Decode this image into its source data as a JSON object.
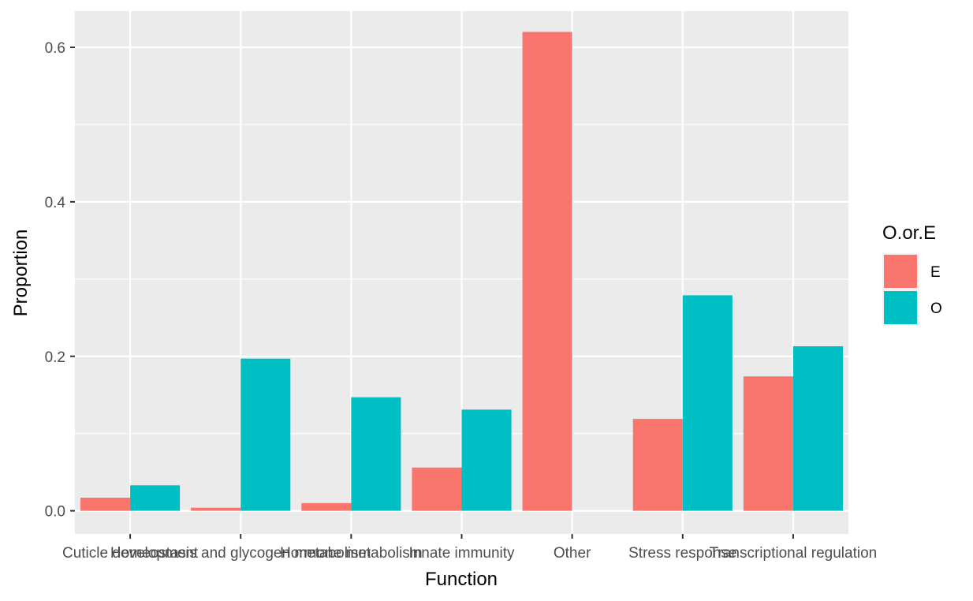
{
  "chart_data": {
    "type": "bar",
    "title": "",
    "xlabel": "Function",
    "ylabel": "Proportion",
    "categories": [
      "Cuticle development",
      "Homeostasis and glycogen metabolism",
      "Hormone metabolism",
      "Innate immunity",
      "Other",
      "Stress response",
      "Transcriptional regulation"
    ],
    "series": [
      {
        "name": "E",
        "color": "#F8766D",
        "values": [
          0.017,
          0.004,
          0.01,
          0.056,
          0.62,
          0.119,
          0.174
        ]
      },
      {
        "name": "O",
        "color": "#00BFC4",
        "values": [
          0.033,
          0.197,
          0.147,
          0.131,
          0.0,
          0.279,
          0.213
        ]
      }
    ],
    "ylim": [
      -0.03,
      0.647
    ],
    "yticks": [
      0.0,
      0.2,
      0.4,
      0.6
    ],
    "ytick_labels": [
      "0.0",
      "0.2",
      "0.4",
      "0.6"
    ],
    "grid": true,
    "legend": {
      "title": "O.or.E",
      "position": "right",
      "entries": [
        "E",
        "O"
      ]
    },
    "panel_background": "#EBEBEB",
    "grid_color": "#FFFFFF"
  }
}
